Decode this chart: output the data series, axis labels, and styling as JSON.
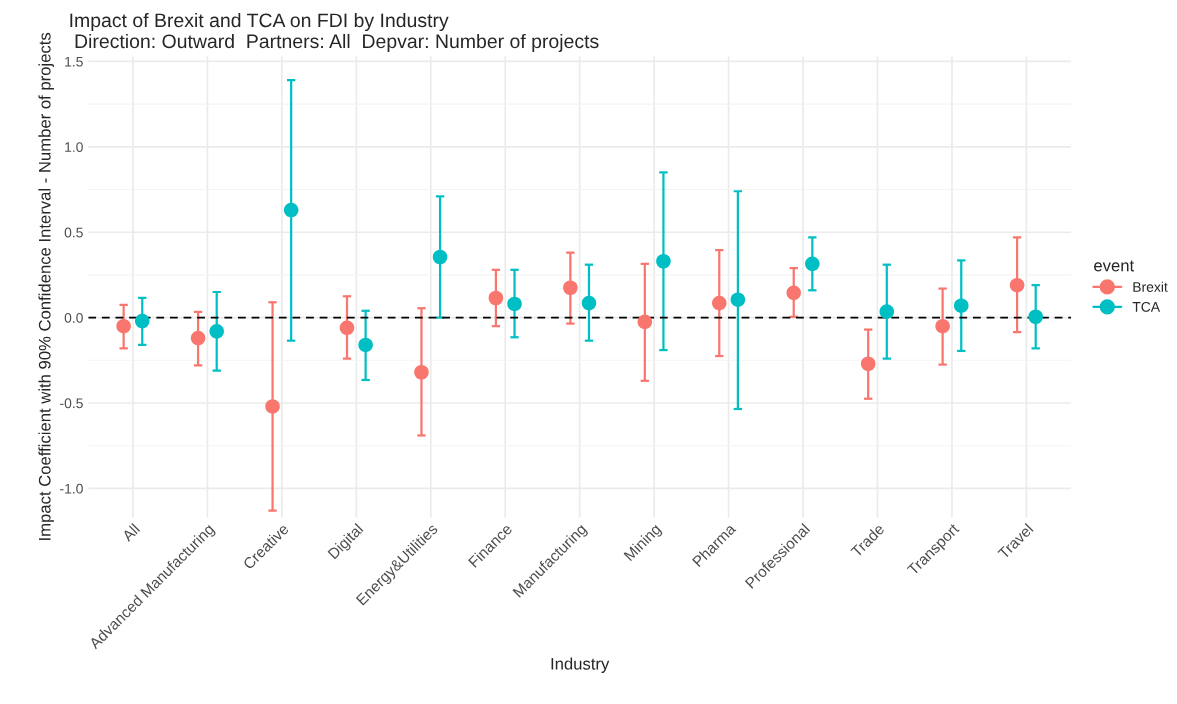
{
  "chart_data": {
    "type": "scatter",
    "title": "Impact of Brexit and TCA on FDI by Industry\n Direction: Outward  Partners: All  Depvar: Number of projects",
    "xlabel": "Industry",
    "ylabel": "Impact Coefficient with 90% Confidence Interval - Number of projects",
    "legend_title": "event",
    "categories": [
      "All",
      "Advanced Manufacturing",
      "Creative",
      "Digital",
      "Energy&Utilities",
      "Finance",
      "Manufacturing",
      "Mining",
      "Pharma",
      "Professional",
      "Trade",
      "Transport",
      "Travel"
    ],
    "series": [
      {
        "name": "Brexit",
        "color": "#f8766d",
        "values": [
          -0.05,
          -0.12,
          -0.52,
          -0.06,
          -0.32,
          0.115,
          0.175,
          -0.025,
          0.085,
          0.145,
          -0.27,
          -0.05,
          0.19
        ],
        "errors": [
          [
            -0.18,
            0.074
          ],
          [
            -0.28,
            0.033
          ],
          [
            -1.13,
            0.09
          ],
          [
            -0.24,
            0.125
          ],
          [
            -0.69,
            0.055
          ],
          [
            -0.05,
            0.28
          ],
          [
            -0.035,
            0.38
          ],
          [
            -0.37,
            0.315
          ],
          [
            -0.225,
            0.395
          ],
          [
            0.005,
            0.29
          ],
          [
            -0.475,
            -0.07
          ],
          [
            -0.275,
            0.17
          ],
          [
            -0.085,
            0.47
          ]
        ]
      },
      {
        "name": "TCA",
        "color": "#00bfc4",
        "values": [
          -0.02,
          -0.08,
          0.63,
          -0.16,
          0.355,
          0.08,
          0.085,
          0.33,
          0.105,
          0.315,
          0.035,
          0.07,
          0.005
        ],
        "errors": [
          [
            -0.16,
            0.115
          ],
          [
            -0.31,
            0.15
          ],
          [
            -0.135,
            1.39
          ],
          [
            -0.365,
            0.04
          ],
          [
            0.0,
            0.71
          ],
          [
            -0.115,
            0.28
          ],
          [
            -0.135,
            0.31
          ],
          [
            -0.19,
            0.85
          ],
          [
            -0.535,
            0.74
          ],
          [
            0.16,
            0.47
          ],
          [
            -0.24,
            0.31
          ],
          [
            -0.195,
            0.335
          ],
          [
            -0.18,
            0.19
          ]
        ]
      }
    ],
    "ylim": [
      -1.17,
      1.53
    ],
    "yticks": [
      {
        "value": -1.0,
        "label": "-1.0"
      },
      {
        "value": -0.5,
        "label": "-0.5"
      },
      {
        "value": 0.0,
        "label": "0.0"
      },
      {
        "value": 0.5,
        "label": "0.5"
      },
      {
        "value": 1.0,
        "label": "1.0"
      },
      {
        "value": 1.5,
        "label": "1.5"
      }
    ],
    "ref_lines": [
      {
        "axis": "y",
        "value": 0,
        "color": "#000000",
        "line_style": "dashed"
      }
    ],
    "grid": true,
    "legend": "right",
    "marker": "circle"
  }
}
